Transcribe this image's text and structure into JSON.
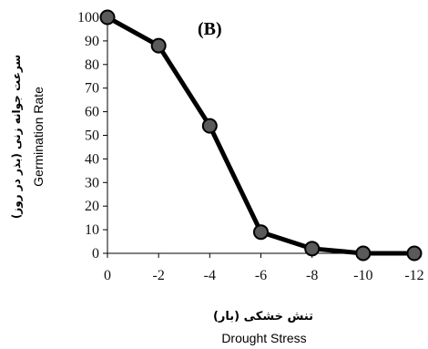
{
  "chart_data": {
    "type": "line",
    "panel_label": "(B)",
    "x": [
      0,
      -2,
      -4,
      -6,
      -8,
      -10,
      -12
    ],
    "x_tick_labels": [
      "0",
      "-2",
      "-4",
      "-6",
      "-8",
      "-10",
      "-12"
    ],
    "y_ticks": [
      0,
      10,
      20,
      30,
      40,
      50,
      60,
      70,
      80,
      90,
      100
    ],
    "ylim": [
      0,
      100
    ],
    "series": [
      {
        "values": [
          100,
          88,
          54,
          9,
          2,
          0,
          0
        ]
      }
    ],
    "xlabel_fa": "تنش خشکی (بار)",
    "xlabel": "Drought Stress",
    "ylabel_fa": "سرعت جوانه زنی (بذر در روز)",
    "ylabel": "Germination Rate",
    "line_color": "#000000",
    "marker_fill": "#5a5a5a",
    "marker_edge": "#000000",
    "grid": false,
    "legend": "none"
  }
}
